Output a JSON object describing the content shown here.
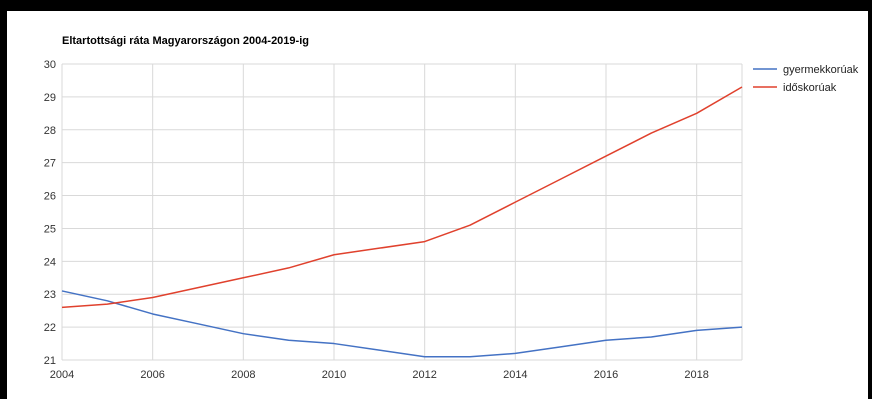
{
  "chart_data": {
    "type": "line",
    "title": "Eltartottsági ráta Magyarországon 2004-2019-ig",
    "xlabel": "",
    "ylabel": "",
    "xlim": [
      2004,
      2019
    ],
    "ylim": [
      21,
      30
    ],
    "x_ticks": [
      2004,
      2006,
      2008,
      2010,
      2012,
      2014,
      2016,
      2018
    ],
    "y_ticks": [
      21,
      22,
      23,
      24,
      25,
      26,
      27,
      28,
      29,
      30
    ],
    "grid": true,
    "legend_position": "right",
    "x": [
      2004,
      2005,
      2006,
      2007,
      2008,
      2009,
      2010,
      2011,
      2012,
      2013,
      2014,
      2015,
      2016,
      2017,
      2018,
      2019
    ],
    "series": [
      {
        "name": "gyermekkorúak",
        "color": "#4472c4",
        "values": [
          23.1,
          22.8,
          22.4,
          22.1,
          21.8,
          21.6,
          21.5,
          21.3,
          21.1,
          21.1,
          21.2,
          21.4,
          21.6,
          21.7,
          21.9,
          22.0
        ]
      },
      {
        "name": "időskorúak",
        "color": "#e0412d",
        "values": [
          22.6,
          22.7,
          22.9,
          23.2,
          23.5,
          23.8,
          24.2,
          24.4,
          24.6,
          25.1,
          25.8,
          26.5,
          27.2,
          27.9,
          28.5,
          29.3
        ]
      }
    ]
  }
}
